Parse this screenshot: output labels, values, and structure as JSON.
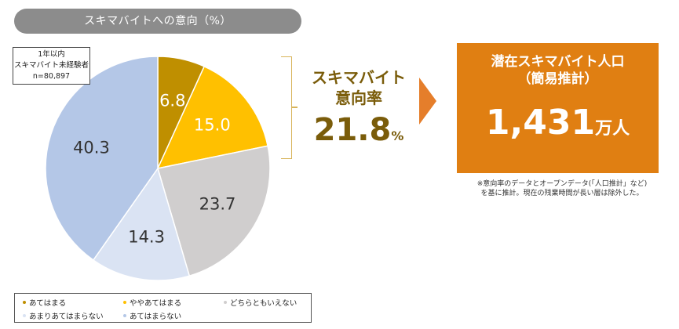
{
  "header": {
    "title": "スキマバイトへの意向（%）"
  },
  "sample": {
    "line1": "1年以内",
    "line2": "スキマバイト未経験者",
    "line3": "n=80,897"
  },
  "rate": {
    "label_line1": "スキマバイト",
    "label_line2": "意向率",
    "value": "21.8",
    "unit": "%"
  },
  "result": {
    "title": "潜在スキマバイト人口",
    "subtitle": "（簡易推計）",
    "value": "1,431",
    "unit": "万人"
  },
  "note": {
    "line1": "※意向率のデータとオープンデータ(「人口推計」など)",
    "line2": "を基に推計。現在の残業時間が長い層は除外した。"
  },
  "legend": [
    {
      "label": "あてはまる",
      "color": "#bf8f00"
    },
    {
      "label": "ややあてはまる",
      "color": "#ffc000"
    },
    {
      "label": "どちらともいえない",
      "color": "#d0cece"
    },
    {
      "label": "あまりあてはまらない",
      "color": "#dae3f3"
    },
    {
      "label": "あてはまらない",
      "color": "#b4c7e7"
    }
  ],
  "chart_data": {
    "type": "pie",
    "title": "スキマバイトへの意向（%）",
    "categories": [
      "あてはまる",
      "ややあてはまる",
      "どちらともいえない",
      "あまりあてはまらない",
      "あてはまらない"
    ],
    "values": [
      6.8,
      15.0,
      23.7,
      14.3,
      40.3
    ],
    "labels": [
      "6.8",
      "15.0",
      "23.7",
      "14.3",
      "40.3"
    ],
    "colors": [
      "#bf8f00",
      "#ffc000",
      "#d0cece",
      "#dae3f3",
      "#b4c7e7"
    ],
    "label_colors": [
      "#ffffff",
      "#ffffff",
      "#333333",
      "#333333",
      "#333333"
    ],
    "start": "12 o'clock",
    "direction": "clockwise",
    "legend_position": "bottom"
  }
}
